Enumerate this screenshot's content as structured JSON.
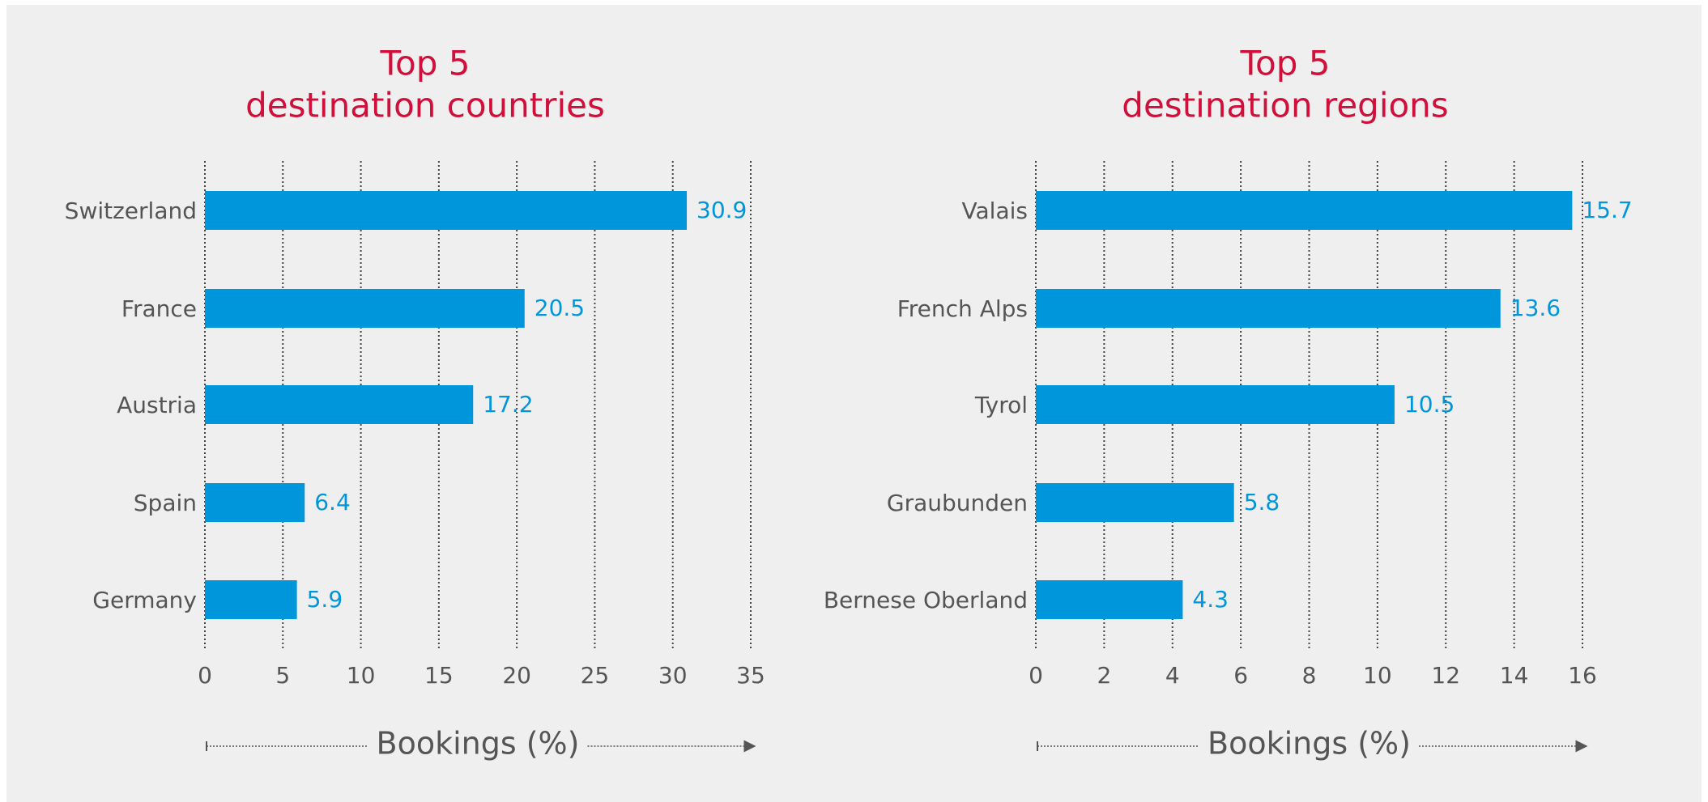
{
  "chart_data": [
    {
      "type": "hbar",
      "title": [
        "Top 5",
        "destination countries"
      ],
      "categories": [
        "Switzerland",
        "France",
        "Austria",
        "Spain",
        "Germany"
      ],
      "values": [
        30.9,
        20.5,
        17.2,
        6.4,
        5.9
      ],
      "color": "#0096dc",
      "xlim": [
        0,
        35
      ],
      "xticks": [
        0,
        5,
        10,
        15,
        20,
        25,
        30,
        35
      ],
      "grid": true,
      "x_label": "Bookings (%)"
    },
    {
      "type": "hbar",
      "title": [
        "Top 5",
        "destination regions"
      ],
      "categories": [
        "Valais",
        "French Alps",
        "Tyrol",
        "Graubunden",
        "Bernese Oberland"
      ],
      "values": [
        15.7,
        13.6,
        10.5,
        5.8,
        4.3
      ],
      "color": "#0096dc",
      "xlim": [
        0,
        16
      ],
      "xticks": [
        0,
        2,
        4,
        6,
        8,
        10,
        12,
        14,
        16
      ],
      "grid": true,
      "x_label": "Bookings (%)"
    }
  ]
}
